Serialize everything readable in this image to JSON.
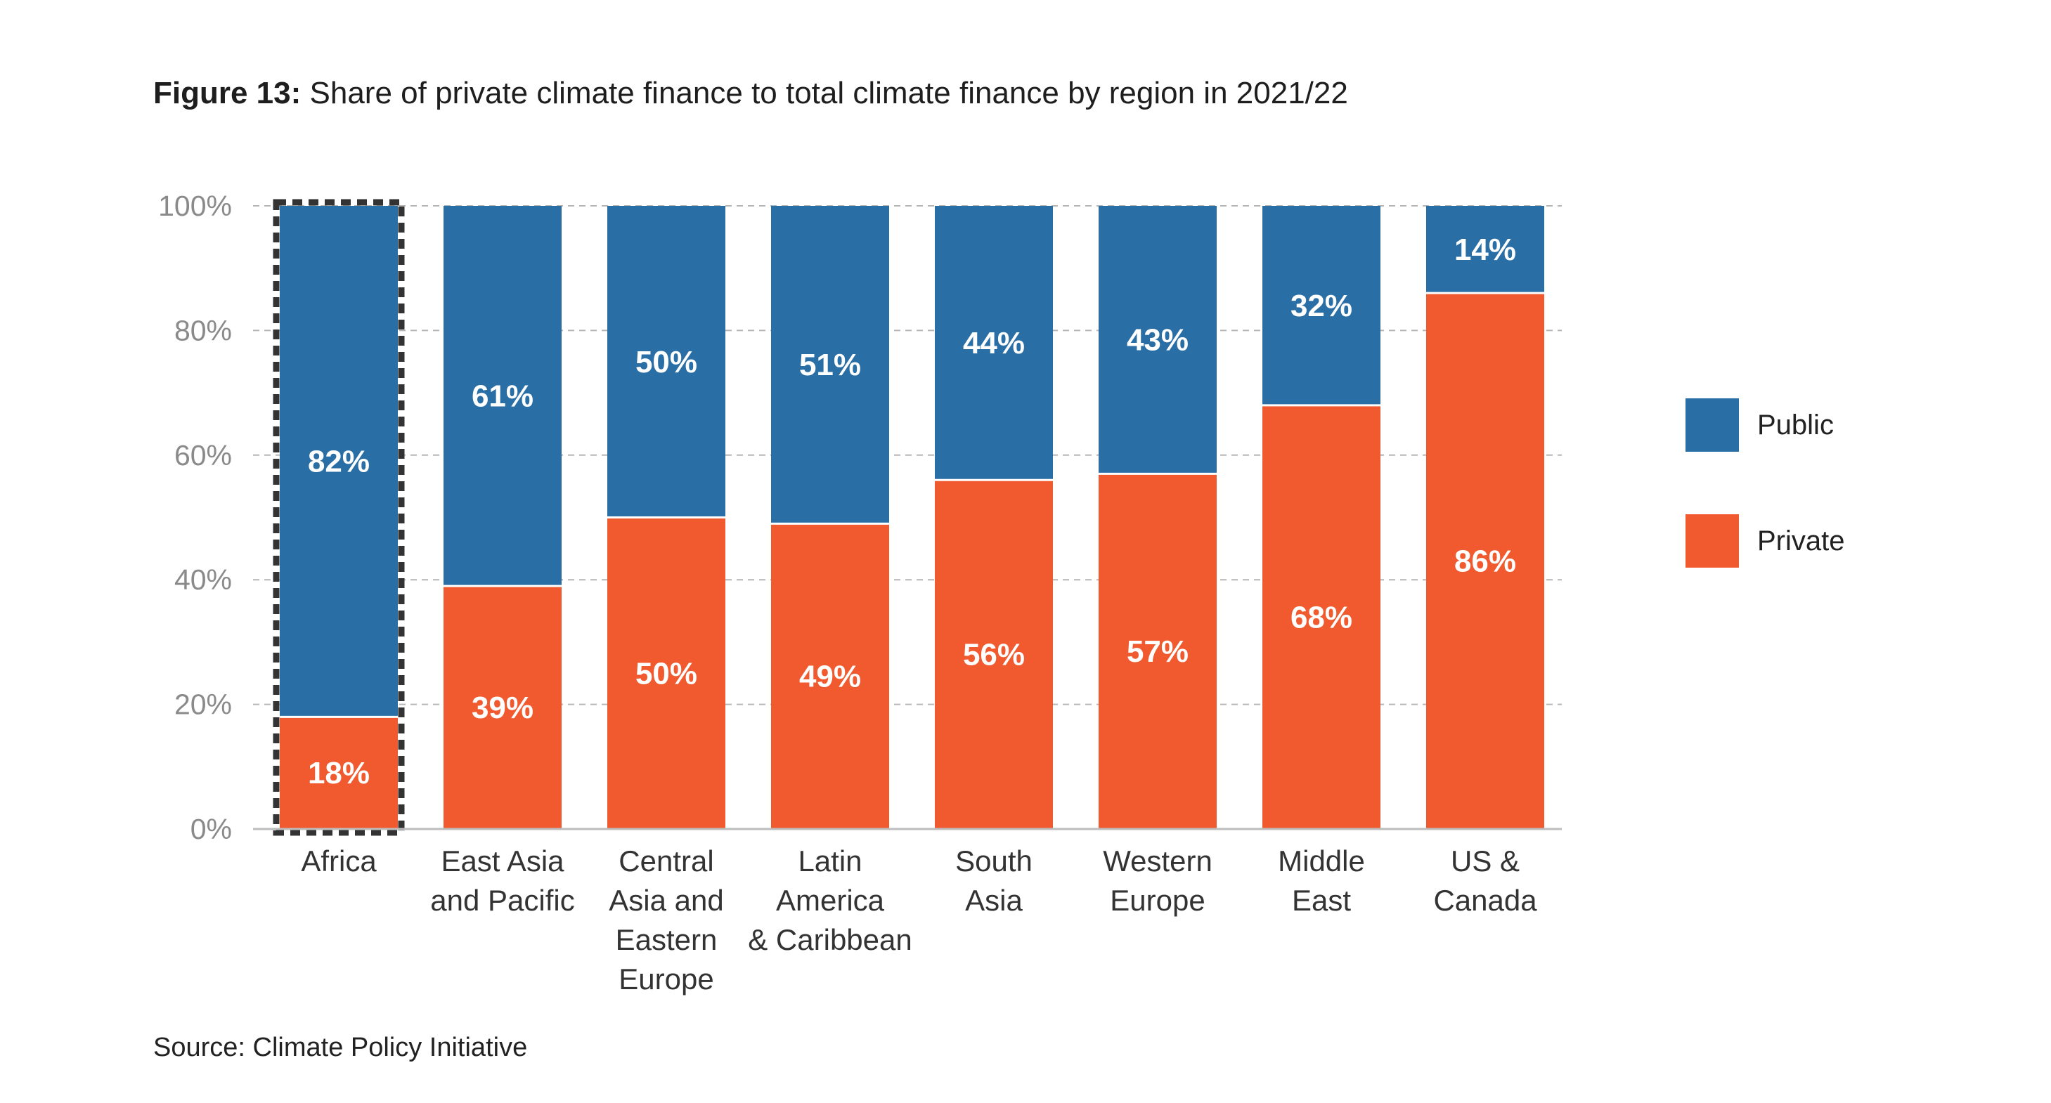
{
  "title": {
    "figure": "Figure 13:",
    "text": "Share of private climate finance to total climate finance by region in 2021/22"
  },
  "source": "Source: Climate Policy Initiative",
  "chart_data": {
    "type": "bar",
    "stacked": true,
    "categories": [
      [
        "Africa"
      ],
      [
        "East Asia",
        "and Pacific"
      ],
      [
        "Central",
        "Asia and",
        "Eastern",
        "Europe"
      ],
      [
        "Latin",
        "America",
        "& Caribbean"
      ],
      [
        "South",
        "Asia"
      ],
      [
        "Western",
        "Europe"
      ],
      [
        "Middle",
        "East"
      ],
      [
        "US &",
        "Canada"
      ]
    ],
    "series": [
      {
        "name": "Private",
        "color": "#f05a2e",
        "values": [
          18,
          39,
          50,
          49,
          56,
          57,
          68,
          86
        ]
      },
      {
        "name": "Public",
        "color": "#2a6ea6",
        "values": [
          82,
          61,
          50,
          51,
          44,
          43,
          32,
          14
        ]
      }
    ],
    "data_labels": {
      "Private": [
        "18%",
        "39%",
        "50%",
        "49%",
        "56%",
        "57%",
        "68%",
        "86%"
      ],
      "Public": [
        "82%",
        "61%",
        "50%",
        "51%",
        "44%",
        "43%",
        "32%",
        "14%"
      ]
    },
    "ylim": [
      0,
      100
    ],
    "yticks": [
      0,
      20,
      40,
      60,
      80,
      100
    ],
    "ytick_labels": [
      "0%",
      "20%",
      "40%",
      "60%",
      "80%",
      "100%"
    ],
    "grid": "horizontal dashed",
    "legend": {
      "placement": "right",
      "entries": [
        {
          "label": "Public",
          "color": "#2a6ea6"
        },
        {
          "label": "Private",
          "color": "#f05a2e"
        }
      ]
    },
    "highlighted_category": "Africa"
  }
}
